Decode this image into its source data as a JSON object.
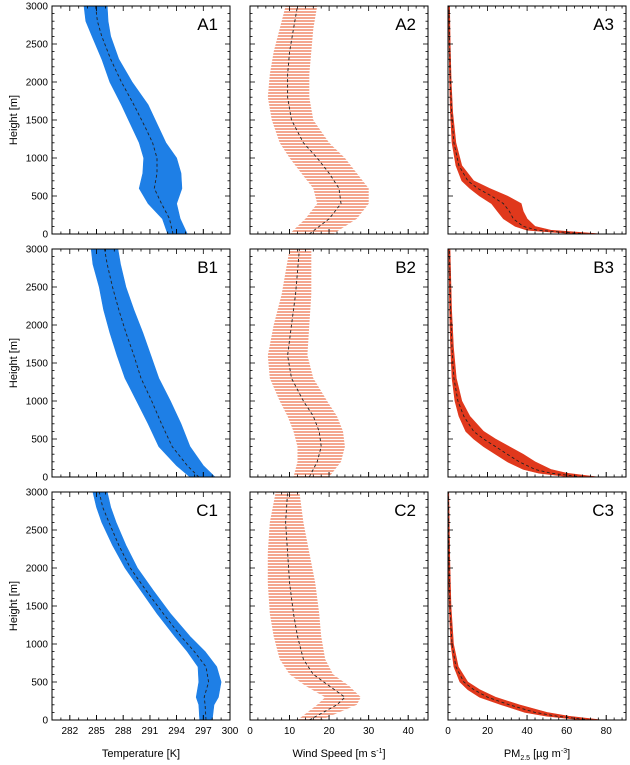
{
  "chart_data": {
    "type": "line",
    "layout": "3x3 grid of vertical profiles with shaded spread",
    "rows": [
      "A",
      "B",
      "C"
    ],
    "y_axis": {
      "label": "Height [m]",
      "ylim": [
        0,
        3000
      ],
      "ticks": [
        0,
        500,
        1000,
        1500,
        2000,
        2500,
        3000
      ],
      "tick_labels": [
        "0",
        "500",
        "1000",
        "1500",
        "2000",
        "2500",
        "3000"
      ]
    },
    "columns": [
      {
        "key": "temperature",
        "xlabel": "Temperature [K]",
        "xlim": [
          280,
          300
        ],
        "ticks": [
          282,
          285,
          288,
          291,
          294,
          297,
          300
        ],
        "tick_labels": [
          "282",
          "285",
          "288",
          "291",
          "294",
          "297",
          "300"
        ],
        "minor_step": 1,
        "fill_color": "#1e7fe6",
        "style": "solid"
      },
      {
        "key": "wind",
        "xlabel": "Wind Speed [m s",
        "xlabel_sup": "-1",
        "xlabel_end": "]",
        "xlim": [
          0,
          45
        ],
        "ticks": [
          0,
          10,
          20,
          30,
          40
        ],
        "tick_labels": [
          "0",
          "10",
          "20",
          "30",
          "40"
        ],
        "minor_step": 2,
        "fill_color": "#f29a7e",
        "style": "hatched"
      },
      {
        "key": "pm25",
        "xlabel": "PM",
        "xlabel_sub": "2.5",
        "xlabel_end": " [µg m",
        "xlabel_sup": "-3",
        "xlabel_close": "]",
        "xlim": [
          0,
          90
        ],
        "ticks": [
          0,
          20,
          40,
          60,
          80
        ],
        "tick_labels": [
          "0",
          "20",
          "40",
          "60",
          "80"
        ],
        "minor_step": 4,
        "fill_color": "#e0381c",
        "style": "solid"
      }
    ],
    "panels": [
      {
        "label": "A1",
        "row": 0,
        "col": 0,
        "series": [
          {
            "y": 0,
            "mean": 293.6,
            "lo": 293,
            "hi": 295.2
          },
          {
            "y": 200,
            "mean": 293.2,
            "lo": 292.4,
            "hi": 294.4
          },
          {
            "y": 400,
            "mean": 292.3,
            "lo": 290.8,
            "hi": 294
          },
          {
            "y": 600,
            "mean": 291.5,
            "lo": 289.8,
            "hi": 294.6
          },
          {
            "y": 800,
            "mean": 291.8,
            "lo": 290.2,
            "hi": 294.5
          },
          {
            "y": 1000,
            "mean": 291.8,
            "lo": 290.3,
            "hi": 294
          },
          {
            "y": 1200,
            "mean": 291.3,
            "lo": 289.8,
            "hi": 292.8
          },
          {
            "y": 1400,
            "mean": 290.5,
            "lo": 289,
            "hi": 292
          },
          {
            "y": 1700,
            "mean": 289.2,
            "lo": 287.8,
            "hi": 290.8
          },
          {
            "y": 2000,
            "mean": 287.8,
            "lo": 286.5,
            "hi": 289
          },
          {
            "y": 2300,
            "mean": 286.6,
            "lo": 285.6,
            "hi": 287.5
          },
          {
            "y": 2600,
            "mean": 285.6,
            "lo": 284.5,
            "hi": 286.6
          },
          {
            "y": 2800,
            "mean": 285.1,
            "lo": 283.8,
            "hi": 286.3
          },
          {
            "y": 3000,
            "mean": 284.9,
            "lo": 283.6,
            "hi": 286.2
          }
        ]
      },
      {
        "label": "A2",
        "row": 0,
        "col": 1,
        "series": [
          {
            "y": 0,
            "mean": 15,
            "lo": 10,
            "hi": 21
          },
          {
            "y": 200,
            "mean": 20,
            "lo": 14,
            "hi": 27
          },
          {
            "y": 400,
            "mean": 23,
            "lo": 17,
            "hi": 30
          },
          {
            "y": 600,
            "mean": 22.5,
            "lo": 16,
            "hi": 30
          },
          {
            "y": 800,
            "mean": 20,
            "lo": 13,
            "hi": 27
          },
          {
            "y": 1000,
            "mean": 17,
            "lo": 10,
            "hi": 24
          },
          {
            "y": 1200,
            "mean": 13.5,
            "lo": 7.5,
            "hi": 20
          },
          {
            "y": 1500,
            "mean": 10.5,
            "lo": 5.5,
            "hi": 16
          },
          {
            "y": 1800,
            "mean": 9.5,
            "lo": 4.5,
            "hi": 15
          },
          {
            "y": 2100,
            "mean": 9.5,
            "lo": 5,
            "hi": 15
          },
          {
            "y": 2400,
            "mean": 10,
            "lo": 6,
            "hi": 15.5
          },
          {
            "y": 2700,
            "mean": 11,
            "lo": 7.5,
            "hi": 16
          },
          {
            "y": 3000,
            "mean": 12,
            "lo": 9,
            "hi": 17
          }
        ]
      },
      {
        "label": "A3",
        "row": 0,
        "col": 2,
        "series": [
          {
            "y": 0,
            "mean": 70,
            "lo": 65,
            "hi": 78
          },
          {
            "y": 50,
            "mean": 45,
            "lo": 40,
            "hi": 52
          },
          {
            "y": 100,
            "mean": 38,
            "lo": 34,
            "hi": 44
          },
          {
            "y": 200,
            "mean": 33,
            "lo": 28,
            "hi": 40
          },
          {
            "y": 300,
            "mean": 31,
            "lo": 25,
            "hi": 38
          },
          {
            "y": 400,
            "mean": 28,
            "lo": 22,
            "hi": 37
          },
          {
            "y": 500,
            "mean": 22,
            "lo": 16,
            "hi": 30
          },
          {
            "y": 600,
            "mean": 15,
            "lo": 11,
            "hi": 21
          },
          {
            "y": 700,
            "mean": 10,
            "lo": 7,
            "hi": 13
          },
          {
            "y": 900,
            "mean": 5.5,
            "lo": 4,
            "hi": 7
          },
          {
            "y": 1200,
            "mean": 3,
            "lo": 2,
            "hi": 4
          },
          {
            "y": 1600,
            "mean": 1.8,
            "lo": 1.2,
            "hi": 2.4
          },
          {
            "y": 2000,
            "mean": 1.2,
            "lo": 0.8,
            "hi": 1.6
          },
          {
            "y": 2500,
            "mean": 0.8,
            "lo": 0.5,
            "hi": 1.1
          },
          {
            "y": 3000,
            "mean": 0.5,
            "lo": 0.3,
            "hi": 0.8
          }
        ]
      },
      {
        "label": "B1",
        "row": 1,
        "col": 0,
        "series": [
          {
            "y": 0,
            "mean": 296.5,
            "lo": 295.5,
            "hi": 298.3
          },
          {
            "y": 150,
            "mean": 295.2,
            "lo": 294,
            "hi": 297
          },
          {
            "y": 400,
            "mean": 293.5,
            "lo": 292,
            "hi": 295.5
          },
          {
            "y": 700,
            "mean": 292.3,
            "lo": 290.8,
            "hi": 294.5
          },
          {
            "y": 1000,
            "mean": 291.2,
            "lo": 289.5,
            "hi": 293.3
          },
          {
            "y": 1300,
            "mean": 290,
            "lo": 288.2,
            "hi": 292
          },
          {
            "y": 1600,
            "mean": 289.2,
            "lo": 287.3,
            "hi": 291.1
          },
          {
            "y": 1900,
            "mean": 288.3,
            "lo": 286.5,
            "hi": 290.2
          },
          {
            "y": 2200,
            "mean": 287.5,
            "lo": 285.8,
            "hi": 289.2
          },
          {
            "y": 2500,
            "mean": 286.8,
            "lo": 285.3,
            "hi": 288.3
          },
          {
            "y": 2800,
            "mean": 286.2,
            "lo": 284.6,
            "hi": 287.7
          },
          {
            "y": 3000,
            "mean": 285.9,
            "lo": 284.4,
            "hi": 287.4
          }
        ]
      },
      {
        "label": "B2",
        "row": 1,
        "col": 1,
        "series": [
          {
            "y": 0,
            "mean": 15,
            "lo": 11,
            "hi": 20
          },
          {
            "y": 200,
            "mean": 17,
            "lo": 12,
            "hi": 23
          },
          {
            "y": 400,
            "mean": 18,
            "lo": 12,
            "hi": 24
          },
          {
            "y": 600,
            "mean": 17.5,
            "lo": 11,
            "hi": 23.5
          },
          {
            "y": 800,
            "mean": 16,
            "lo": 9.5,
            "hi": 22
          },
          {
            "y": 1000,
            "mean": 13.5,
            "lo": 7.5,
            "hi": 19.5
          },
          {
            "y": 1300,
            "mean": 10.5,
            "lo": 5,
            "hi": 16
          },
          {
            "y": 1600,
            "mean": 9.5,
            "lo": 4.5,
            "hi": 14.5
          },
          {
            "y": 2000,
            "mean": 10.5,
            "lo": 6,
            "hi": 15
          },
          {
            "y": 2400,
            "mean": 11.5,
            "lo": 8,
            "hi": 15.5
          },
          {
            "y": 2700,
            "mean": 12,
            "lo": 9,
            "hi": 15.5
          },
          {
            "y": 3000,
            "mean": 12.5,
            "lo": 10,
            "hi": 15.5
          }
        ]
      },
      {
        "label": "B3",
        "row": 1,
        "col": 2,
        "series": [
          {
            "y": 0,
            "mean": 68,
            "lo": 62,
            "hi": 76
          },
          {
            "y": 50,
            "mean": 52,
            "lo": 46,
            "hi": 60
          },
          {
            "y": 100,
            "mean": 44,
            "lo": 38,
            "hi": 52
          },
          {
            "y": 200,
            "mean": 36,
            "lo": 30,
            "hi": 44
          },
          {
            "y": 300,
            "mean": 30,
            "lo": 24,
            "hi": 38
          },
          {
            "y": 400,
            "mean": 24,
            "lo": 18,
            "hi": 31
          },
          {
            "y": 500,
            "mean": 18,
            "lo": 13,
            "hi": 24
          },
          {
            "y": 600,
            "mean": 13,
            "lo": 9,
            "hi": 18
          },
          {
            "y": 800,
            "mean": 8,
            "lo": 5.5,
            "hi": 11
          },
          {
            "y": 1000,
            "mean": 5,
            "lo": 3.5,
            "hi": 7
          },
          {
            "y": 1300,
            "mean": 3,
            "lo": 2,
            "hi": 4.2
          },
          {
            "y": 1700,
            "mean": 2,
            "lo": 1.3,
            "hi": 2.8
          },
          {
            "y": 2200,
            "mean": 1.3,
            "lo": 0.8,
            "hi": 1.8
          },
          {
            "y": 3000,
            "mean": 0.7,
            "lo": 0.4,
            "hi": 1
          }
        ]
      },
      {
        "label": "C1",
        "row": 2,
        "col": 0,
        "series": [
          {
            "y": 0,
            "mean": 297.3,
            "lo": 296.6,
            "hi": 298
          },
          {
            "y": 200,
            "mean": 297.2,
            "lo": 296.5,
            "hi": 298.2
          },
          {
            "y": 300,
            "mean": 297.1,
            "lo": 296.2,
            "hi": 298.7
          },
          {
            "y": 500,
            "mean": 297.6,
            "lo": 296.5,
            "hi": 299
          },
          {
            "y": 700,
            "mean": 297.3,
            "lo": 296.4,
            "hi": 298.5
          },
          {
            "y": 900,
            "mean": 296,
            "lo": 295.2,
            "hi": 297.2
          },
          {
            "y": 1100,
            "mean": 294.5,
            "lo": 293.8,
            "hi": 295.5
          },
          {
            "y": 1400,
            "mean": 292.5,
            "lo": 291.8,
            "hi": 293.3
          },
          {
            "y": 1700,
            "mean": 290.6,
            "lo": 290,
            "hi": 291.4
          },
          {
            "y": 2000,
            "mean": 288.8,
            "lo": 288.2,
            "hi": 289.6
          },
          {
            "y": 2300,
            "mean": 287.5,
            "lo": 286.8,
            "hi": 288.3
          },
          {
            "y": 2600,
            "mean": 286.4,
            "lo": 285.6,
            "hi": 287.2
          },
          {
            "y": 2800,
            "mean": 285.7,
            "lo": 285,
            "hi": 286.6
          },
          {
            "y": 3000,
            "mean": 285.3,
            "lo": 284.6,
            "hi": 286.2
          }
        ]
      },
      {
        "label": "C2",
        "row": 2,
        "col": 1,
        "series": [
          {
            "y": 0,
            "mean": 15,
            "lo": 12,
            "hi": 18
          },
          {
            "y": 200,
            "mean": 22,
            "lo": 17,
            "hi": 27
          },
          {
            "y": 300,
            "mean": 24,
            "lo": 19,
            "hi": 28
          },
          {
            "y": 450,
            "mean": 20,
            "lo": 14,
            "hi": 25
          },
          {
            "y": 600,
            "mean": 16,
            "lo": 10,
            "hi": 21
          },
          {
            "y": 800,
            "mean": 13.5,
            "lo": 7.5,
            "hi": 19
          },
          {
            "y": 1100,
            "mean": 12,
            "lo": 6,
            "hi": 18
          },
          {
            "y": 1400,
            "mean": 11,
            "lo": 5,
            "hi": 17.5
          },
          {
            "y": 1800,
            "mean": 10,
            "lo": 4.5,
            "hi": 16.5
          },
          {
            "y": 2200,
            "mean": 9.5,
            "lo": 4.5,
            "hi": 15
          },
          {
            "y": 2600,
            "mean": 9,
            "lo": 5,
            "hi": 13.5
          },
          {
            "y": 3000,
            "mean": 9.5,
            "lo": 6.5,
            "hi": 12.5
          }
        ]
      },
      {
        "label": "C3",
        "row": 2,
        "col": 2,
        "series": [
          {
            "y": 0,
            "mean": 72,
            "lo": 68,
            "hi": 78
          },
          {
            "y": 50,
            "mean": 55,
            "lo": 50,
            "hi": 61
          },
          {
            "y": 100,
            "mean": 44,
            "lo": 39,
            "hi": 50
          },
          {
            "y": 200,
            "mean": 31,
            "lo": 27,
            "hi": 36
          },
          {
            "y": 300,
            "mean": 20,
            "lo": 16,
            "hi": 24
          },
          {
            "y": 400,
            "mean": 13,
            "lo": 10,
            "hi": 16
          },
          {
            "y": 500,
            "mean": 8,
            "lo": 6,
            "hi": 10
          },
          {
            "y": 700,
            "mean": 4,
            "lo": 3,
            "hi": 5.2
          },
          {
            "y": 1000,
            "mean": 2,
            "lo": 1.4,
            "hi": 2.8
          },
          {
            "y": 1500,
            "mean": 1,
            "lo": 0.6,
            "hi": 1.5
          },
          {
            "y": 2100,
            "mean": 0.5,
            "lo": 0.2,
            "hi": 0.9
          },
          {
            "y": 3000,
            "mean": 0.2,
            "lo": 0.1,
            "hi": 0.4
          }
        ]
      }
    ]
  }
}
